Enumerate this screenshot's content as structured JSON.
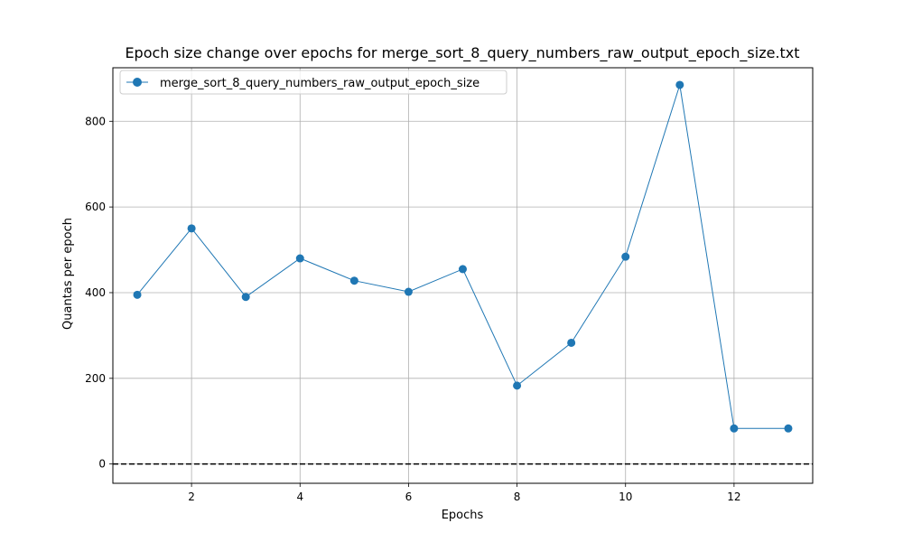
{
  "chart_data": {
    "type": "line",
    "title": "Epoch size change over epochs for merge_sort_8_query_numbers_raw_output_epoch_size.txt",
    "xlabel": "Epochs",
    "ylabel": "Quantas per epoch",
    "xlim": [
      0.55,
      13.45
    ],
    "ylim": [
      -45,
      925
    ],
    "xticks": [
      2,
      4,
      6,
      8,
      10,
      12
    ],
    "yticks": [
      0,
      200,
      400,
      600,
      800
    ],
    "grid": true,
    "legend_position": "top-left",
    "reference_line": {
      "y": 0,
      "style": "dashed",
      "color": "#000000"
    },
    "series": [
      {
        "name": "merge_sort_8_query_numbers_raw_output_epoch_size",
        "color": "#1f77b4",
        "marker": "circle",
        "x": [
          1,
          2,
          3,
          4,
          5,
          6,
          7,
          8,
          9,
          10,
          11,
          12,
          13
        ],
        "y": [
          395,
          550,
          390,
          480,
          428,
          402,
          455,
          183,
          283,
          484,
          885,
          83,
          83
        ]
      }
    ]
  }
}
